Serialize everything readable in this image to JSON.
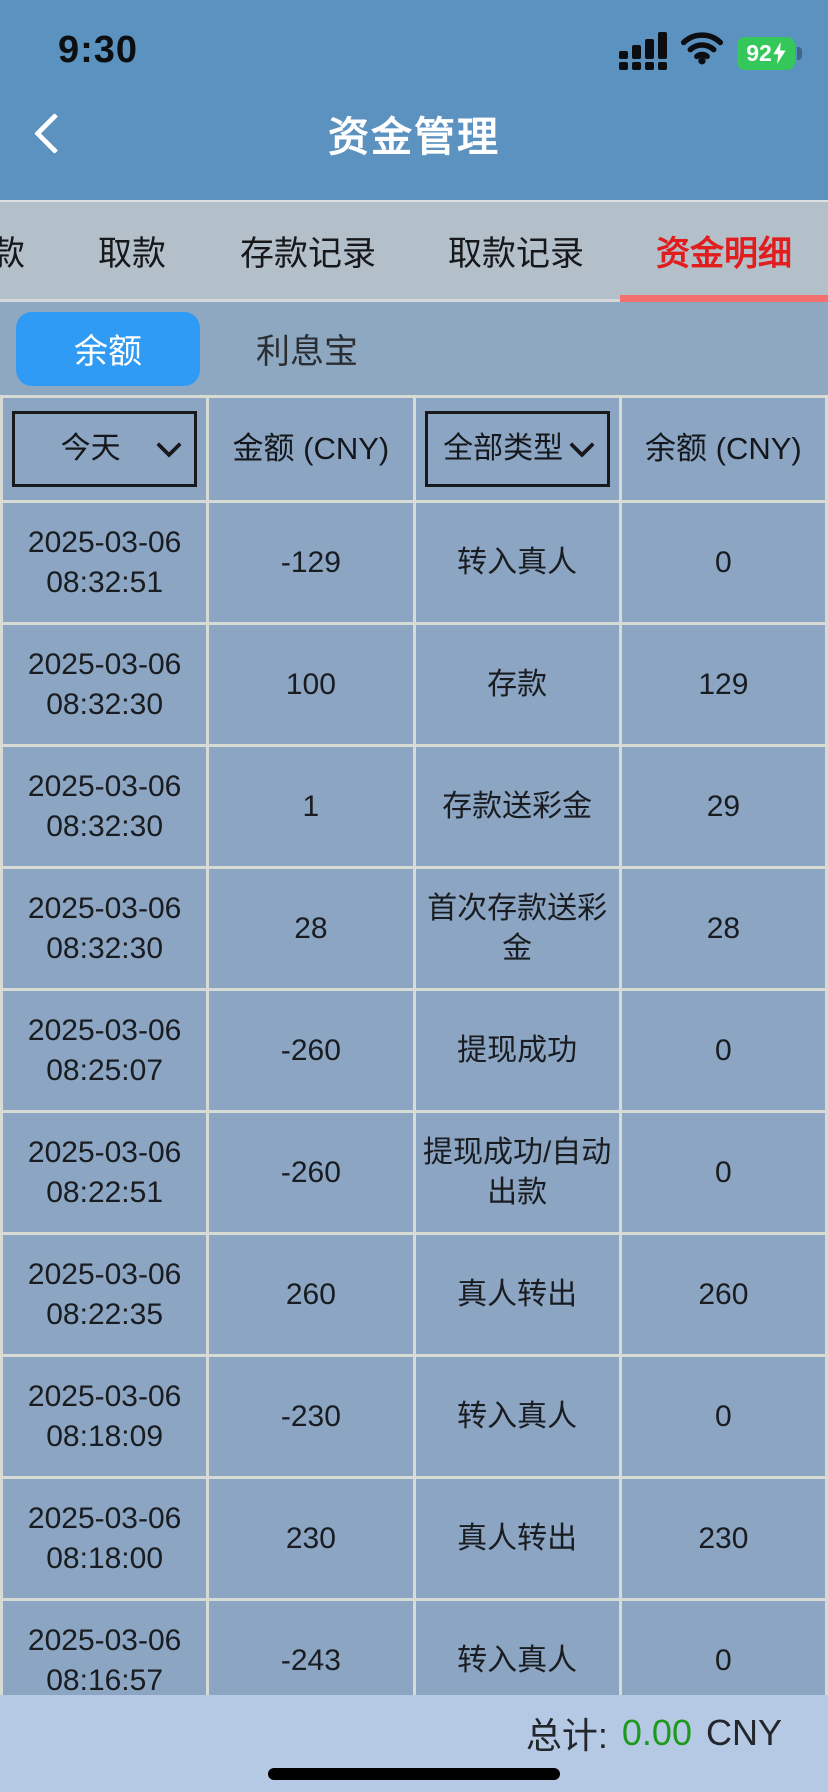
{
  "status_bar": {
    "time": "9:30",
    "battery_percent": "92",
    "icons": [
      "cellular-signal",
      "wifi",
      "battery-charging"
    ]
  },
  "nav": {
    "title": "资金管理"
  },
  "tabs": {
    "items": [
      {
        "label": "款",
        "partial": true
      },
      {
        "label": "取款"
      },
      {
        "label": "存款记录"
      },
      {
        "label": "取款记录"
      },
      {
        "label": "资金明细",
        "active": true
      }
    ],
    "active_color": "#e11d1d",
    "underline_color": "#f2706e"
  },
  "subtabs": {
    "items": [
      {
        "label": "余额",
        "active": true
      },
      {
        "label": "利息宝"
      }
    ],
    "active_bg": "#2f9bf4"
  },
  "table": {
    "filters": {
      "date_value": "今天",
      "type_value": "全部类型"
    },
    "header": {
      "amount_label": "金额 (CNY)",
      "balance_label": "余额 (CNY)"
    },
    "rows": [
      {
        "time": "2025-03-06 08:32:51",
        "amount": "-129",
        "type": "转入真人",
        "balance": "0"
      },
      {
        "time": "2025-03-06 08:32:30",
        "amount": "100",
        "type": "存款",
        "balance": "129"
      },
      {
        "time": "2025-03-06 08:32:30",
        "amount": "1",
        "type": "存款送彩金",
        "balance": "29"
      },
      {
        "time": "2025-03-06 08:32:30",
        "amount": "28",
        "type": "首次存款送彩金",
        "balance": "28"
      },
      {
        "time": "2025-03-06 08:25:07",
        "amount": "-260",
        "type": "提现成功",
        "balance": "0"
      },
      {
        "time": "2025-03-06 08:22:51",
        "amount": "-260",
        "type": "提现成功/自动出款",
        "balance": "0"
      },
      {
        "time": "2025-03-06 08:22:35",
        "amount": "260",
        "type": "真人转出",
        "balance": "260"
      },
      {
        "time": "2025-03-06 08:18:09",
        "amount": "-230",
        "type": "转入真人",
        "balance": "0"
      },
      {
        "time": "2025-03-06 08:18:00",
        "amount": "230",
        "type": "真人转出",
        "balance": "230"
      },
      {
        "time": "2025-03-06 08:16:57",
        "amount": "-243",
        "type": "转入真人",
        "balance": "0"
      }
    ]
  },
  "footer": {
    "total_label": "总计:",
    "total_value": "0.00",
    "currency": "CNY",
    "total_color": "#1d9a1d"
  }
}
